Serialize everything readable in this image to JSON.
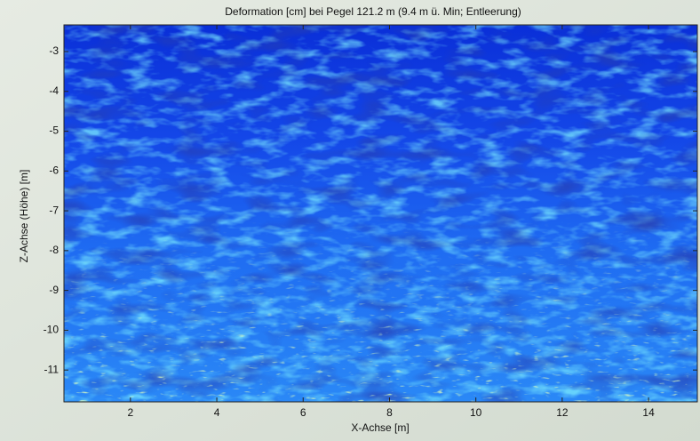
{
  "chart_data": {
    "type": "heatmap",
    "title": "Deformation [cm] bei Pegel 121.2 m (9.4 m ü. Min; Entleerung)",
    "xlabel": "X-Achse [m]",
    "ylabel": "Z-Achse (Höhe) [m]",
    "xlim": [
      0.46,
      15.13
    ],
    "ylim": [
      -11.8,
      -2.33
    ],
    "xticks": [
      2,
      4,
      6,
      8,
      10,
      12,
      14
    ],
    "yticks": [
      -3,
      -4,
      -5,
      -6,
      -7,
      -8,
      -9,
      -10,
      -11
    ]
  }
}
